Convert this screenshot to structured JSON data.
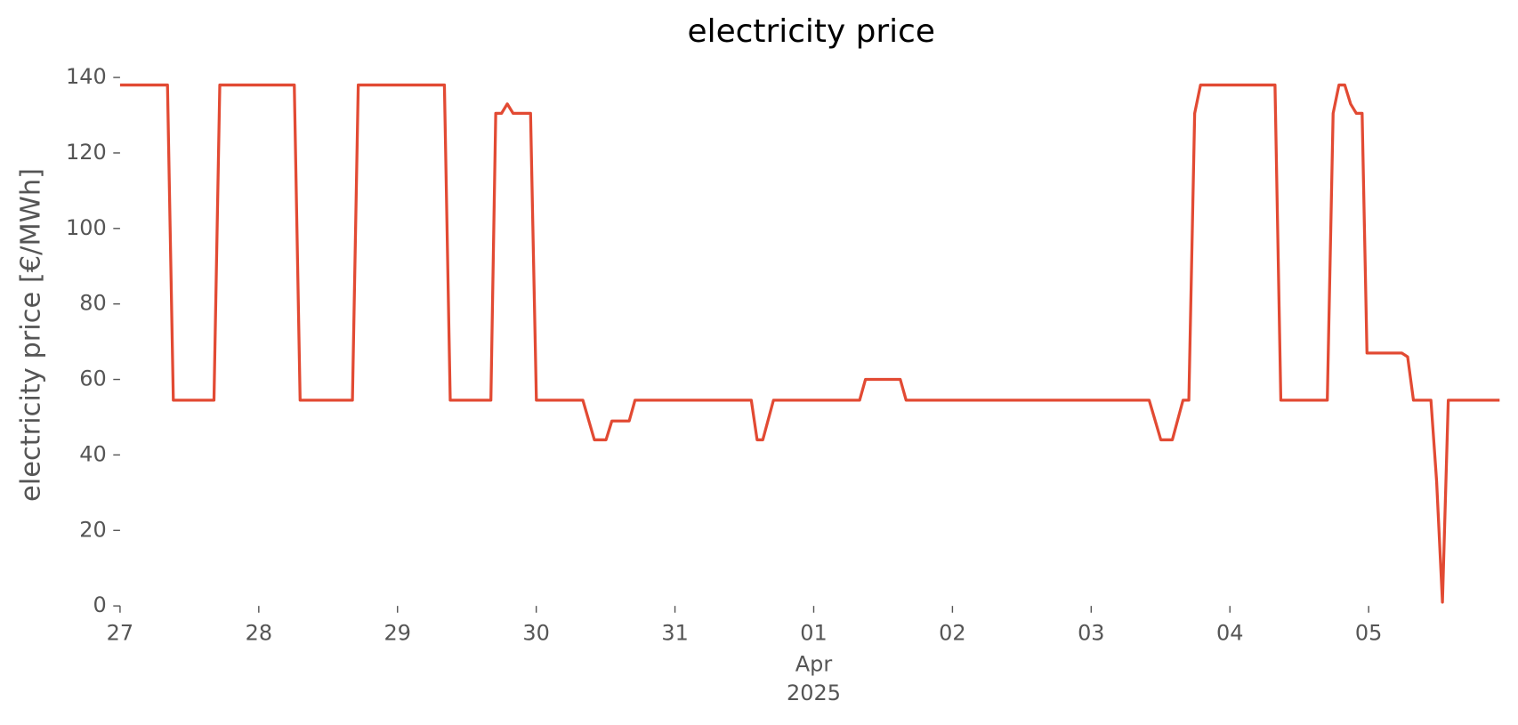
{
  "chart_data": {
    "type": "line",
    "title": "electricity price",
    "ylabel": "electricity price [€/MWh]",
    "x": [
      0,
      0.342,
      0.384,
      0.677,
      0.719,
      1.256,
      1.298,
      1.675,
      1.717,
      2.338,
      2.38,
      2.673,
      2.708,
      2.75,
      2.791,
      2.833,
      2.959,
      3.001,
      3.336,
      3.419,
      3.503,
      3.545,
      3.67,
      3.712,
      4.55,
      4.592,
      4.633,
      4.71,
      5.331,
      5.373,
      5.624,
      5.666,
      7.418,
      7.502,
      7.585,
      7.662,
      7.704,
      7.746,
      7.788,
      8.325,
      8.367,
      8.702,
      8.744,
      8.786,
      8.828,
      8.87,
      8.911,
      8.953,
      8.988,
      9.239,
      9.281,
      9.323,
      9.449,
      9.49,
      9.532,
      9.574,
      9.944
    ],
    "series": [
      {
        "name": "electricity price",
        "color": "#E24A33",
        "values": [
          138,
          138,
          54.5,
          54.5,
          138,
          138,
          54.5,
          54.5,
          138,
          138,
          54.5,
          54.5,
          130.5,
          130.5,
          133,
          130.5,
          130.5,
          54.5,
          54.5,
          44,
          44,
          49,
          49,
          54.5,
          54.5,
          44,
          44,
          54.5,
          54.5,
          60,
          60,
          54.5,
          54.5,
          44,
          44,
          54.5,
          54.5,
          130.5,
          138,
          138,
          54.5,
          54.5,
          130.5,
          138,
          138,
          133,
          130.5,
          130.5,
          67,
          67,
          66,
          54.5,
          54.5,
          33,
          1,
          54.5,
          54.5
        ]
      }
    ],
    "xlim": [
      0,
      9.944
    ],
    "xticks": [
      {
        "value": 0,
        "label": "27"
      },
      {
        "value": 1,
        "label": "28"
      },
      {
        "value": 2,
        "label": "29"
      },
      {
        "value": 3,
        "label": "30"
      },
      {
        "value": 4,
        "label": "31"
      },
      {
        "value": 5,
        "label": "01",
        "month": "Apr",
        "year": "2025"
      },
      {
        "value": 6,
        "label": "02"
      },
      {
        "value": 7,
        "label": "03"
      },
      {
        "value": 8,
        "label": "04"
      },
      {
        "value": 9,
        "label": "05"
      }
    ],
    "ylim": [
      0,
      140
    ],
    "yticks": [
      0,
      20,
      40,
      60,
      80,
      100,
      120,
      140
    ],
    "grid": false
  }
}
